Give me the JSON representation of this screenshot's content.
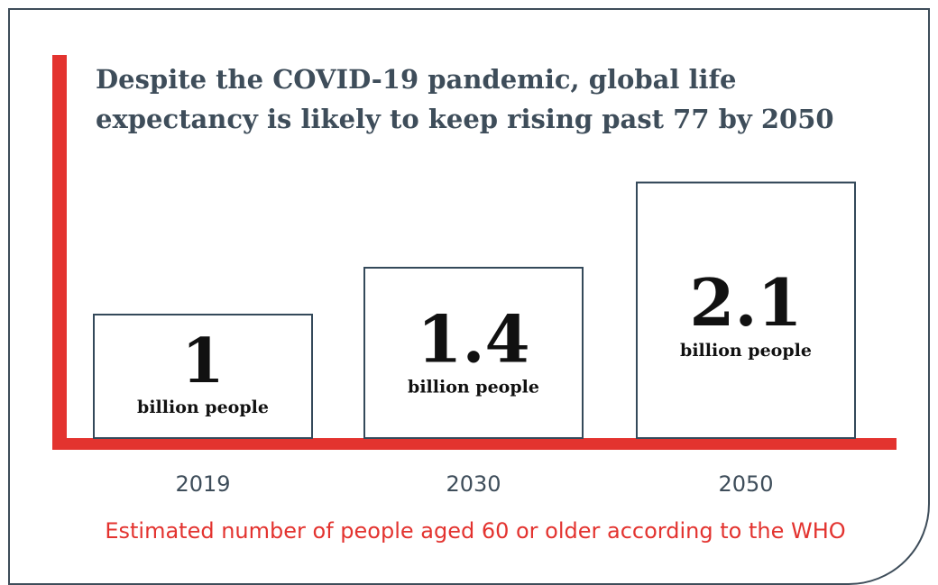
{
  "chart_data": {
    "type": "bar",
    "title": "Despite the COVID-19 pandemic, global life expectancy is likely to keep rising past 77 by 2050",
    "categories": [
      "2019",
      "2030",
      "2050"
    ],
    "values": [
      1,
      1.4,
      2.1
    ],
    "value_labels": [
      "1",
      "1.4",
      "2.1"
    ],
    "unit_label": "billion people",
    "caption": "Estimated number of people aged 60 or older according to the WHO",
    "grid": false,
    "legend": "none"
  },
  "colors": {
    "accent": "#e3332f",
    "border": "#3e4d5a",
    "bar_outline": "#34495a",
    "text": "#111111"
  }
}
